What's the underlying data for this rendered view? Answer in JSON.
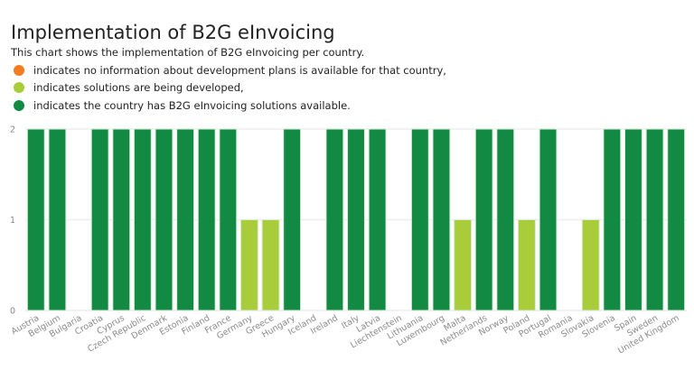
{
  "chart_data": {
    "type": "bar",
    "title": "Implementation of B2G eInvoicing",
    "subtitle": "This chart shows the implementation of B2G eInvoicing per country.",
    "legend": [
      {
        "color": "#f47c20",
        "label": "indicates no information about development plans is available for that country,"
      },
      {
        "color": "#a8cc3a",
        "label": "indicates solutions are being developed,"
      },
      {
        "color": "#138a43",
        "label": "indicates the country has B2G eInvoicing solutions available."
      }
    ],
    "legend_position": "top-left",
    "xlabel": "",
    "ylabel": "",
    "ylim": [
      0,
      2
    ],
    "yticks": [
      0,
      1,
      2
    ],
    "grid": true,
    "categories": [
      "Austria",
      "Belgium",
      "Bulgaria",
      "Croatia",
      "Cyprus",
      "Czech Republic",
      "Denmark",
      "Estonia",
      "Finland",
      "France",
      "Germany",
      "Greece",
      "Hungary",
      "Iceland",
      "Ireland",
      "Italy",
      "Latvia",
      "Liechtenstein",
      "Lithuania",
      "Luxembourg",
      "Malta",
      "Netherlands",
      "Norway",
      "Poland",
      "Portugal",
      "Romania",
      "Slovakia",
      "Slovenia",
      "Spain",
      "Sweden",
      "United Kingdom"
    ],
    "values": [
      2,
      2,
      0,
      2,
      2,
      2,
      2,
      2,
      2,
      2,
      1,
      1,
      2,
      0,
      2,
      2,
      2,
      0,
      2,
      2,
      1,
      2,
      2,
      1,
      2,
      0,
      1,
      2,
      2,
      2,
      2
    ],
    "value_colors": {
      "1": "#a8cc3a",
      "2": "#138a43"
    }
  }
}
